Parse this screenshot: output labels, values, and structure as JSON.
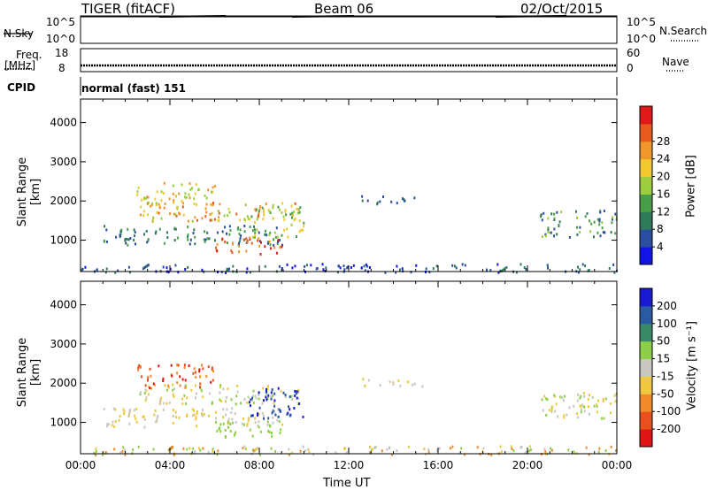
{
  "header": {
    "radar": "TIGER (fitACF)",
    "beam": "Beam 06",
    "date": "02/Oct/2015"
  },
  "top_panels": {
    "nsky_label": "N.Sky",
    "nsky_ticks": [
      "10^5",
      "10^0"
    ],
    "nsearch_label": "N.Search",
    "nsearch_ticks": [
      "10^5",
      "10^0"
    ],
    "freq_label_1": "Freq.",
    "freq_label_2": "[MHz]",
    "freq_ticks": [
      "18",
      "8"
    ],
    "nave_label": "Nave",
    "nave_ticks": [
      "60",
      "0"
    ],
    "cpid_label": "CPID",
    "cpid_value": "normal (fast) 151"
  },
  "chart_data": [
    {
      "type": "heatmap",
      "name": "power",
      "ylabel": "Slant Range [km]",
      "xlabel": "Time UT",
      "x_ticks": [
        "00:00",
        "04:00",
        "08:00",
        "12:00",
        "16:00",
        "20:00",
        "00:00"
      ],
      "y_ticks": [
        "1000",
        "2000",
        "3000",
        "4000"
      ],
      "ylim": [
        200,
        4600
      ],
      "xlim_hours": [
        0,
        24
      ],
      "colorbar_label": "Power [dB]",
      "colorbar_ticks": [
        "4",
        "8",
        "12",
        "16",
        "20",
        "24",
        "28"
      ],
      "colorbar_range": [
        0,
        30
      ],
      "colors": [
        "#1414e6",
        "#2a4fa0",
        "#2f7a5a",
        "#4a9e4a",
        "#9ccd3c",
        "#f2c830",
        "#f0962a",
        "#e85a1e",
        "#e01a1a"
      ]
    },
    {
      "type": "heatmap",
      "name": "velocity",
      "ylabel": "Slant Range [km]",
      "xlabel": "Time UT",
      "x_ticks": [
        "00:00",
        "04:00",
        "08:00",
        "12:00",
        "16:00",
        "20:00",
        "00:00"
      ],
      "y_ticks": [
        "1000",
        "2000",
        "3000",
        "4000"
      ],
      "ylim": [
        200,
        4600
      ],
      "xlim_hours": [
        0,
        24
      ],
      "colorbar_label": "Velocity [m s⁻¹]",
      "colorbar_ticks": [
        "200",
        "100",
        "50",
        "15",
        "-15",
        "-50",
        "-100",
        "-200"
      ],
      "colors": [
        "#1a1ad2",
        "#2a5aa0",
        "#3a8a6a",
        "#8ecf4a",
        "#c8c8c0",
        "#f0c840",
        "#f08a2a",
        "#e85020",
        "#e01414"
      ]
    }
  ]
}
